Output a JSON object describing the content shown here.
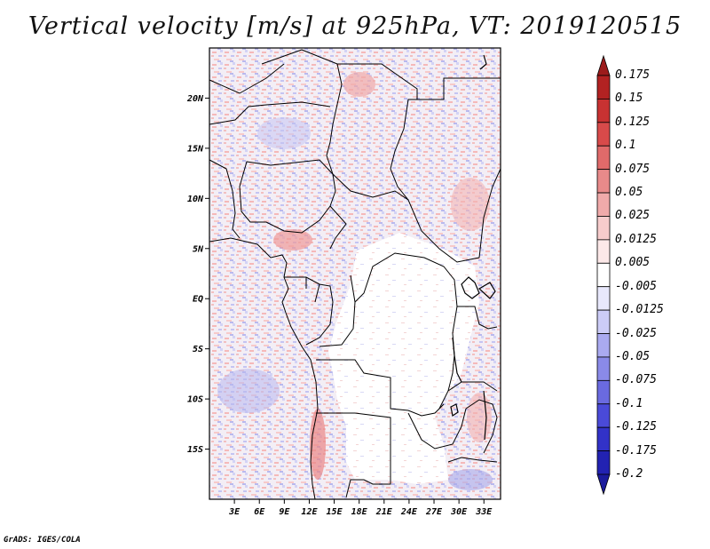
{
  "title": "Vertical velocity [m/s] at 925hPa, VT: 2019120515",
  "credit": "GrADS: IGES/COLA",
  "map": {
    "lon_range": [
      0,
      35
    ],
    "lat_range": [
      -20,
      25
    ],
    "lon_ticks": [
      "3E",
      "6E",
      "9E",
      "12E",
      "15E",
      "18E",
      "21E",
      "24E",
      "27E",
      "30E",
      "33E"
    ],
    "lat_ticks": [
      "20N",
      "15N",
      "10N",
      "5N",
      "EQ",
      "5S",
      "10S",
      "15S"
    ]
  },
  "colorbar": {
    "labels": [
      "0.175",
      "0.15",
      "0.125",
      "0.1",
      "0.075",
      "0.05",
      "0.025",
      "0.0125",
      "0.005",
      "-0.005",
      "-0.0125",
      "-0.025",
      "-0.05",
      "-0.075",
      "-0.1",
      "-0.125",
      "-0.175",
      "-0.2"
    ],
    "colors": [
      "#9c1b1b",
      "#b22222",
      "#c83232",
      "#d84a4a",
      "#e06a6a",
      "#e88a8a",
      "#f0aaaa",
      "#f7cccc",
      "#fce8e8",
      "#ffffff",
      "#e8e8fc",
      "#ccccf7",
      "#aaaaf0",
      "#8a8ae8",
      "#6a6ae0",
      "#4a4ad8",
      "#3232c8",
      "#2222b2",
      "#1b1b9c"
    ]
  }
}
